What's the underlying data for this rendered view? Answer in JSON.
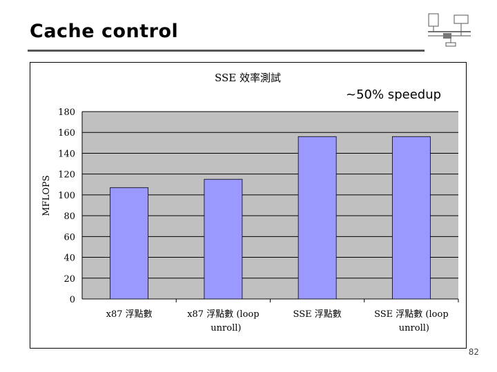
{
  "slide": {
    "title": "Cache control",
    "page_number": "82"
  },
  "annotation": "~50% speedup",
  "chart_data": {
    "type": "bar",
    "title": "SSE 效率測試",
    "ylabel": "MFLOPS",
    "xlabel": "",
    "ylim": [
      0,
      180
    ],
    "yticks": [
      0,
      20,
      40,
      60,
      80,
      100,
      120,
      140,
      160,
      180
    ],
    "grid": true,
    "categories": [
      [
        "x87 浮點數"
      ],
      [
        "x87 浮點數 (loop",
        "unroll)"
      ],
      [
        "SSE 浮點數"
      ],
      [
        "SSE 浮點數 (loop",
        "unroll)"
      ]
    ],
    "values": [
      107,
      115,
      156,
      156
    ],
    "colors": {
      "bar": "#9999ff",
      "plot_bg": "#c0c0c0",
      "gridline": "#000000"
    }
  }
}
